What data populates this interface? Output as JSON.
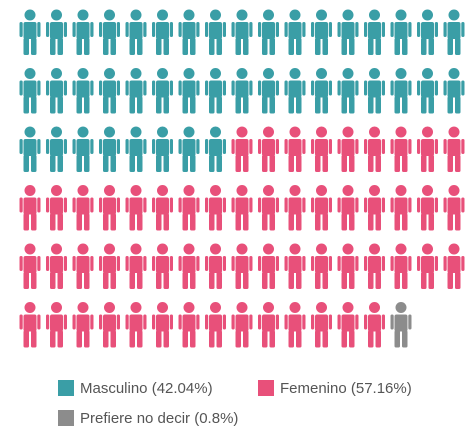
{
  "chart_data": {
    "type": "waffle",
    "categories": [
      "Masculino (42.04%)",
      "Femenino (57.16%)",
      "Prefiere no decir (0.8%)"
    ],
    "values": [
      42.04,
      57.16,
      0.8
    ],
    "colors": [
      "#3a9ea6",
      "#e8507a",
      "#8c8c8c"
    ]
  }
}
